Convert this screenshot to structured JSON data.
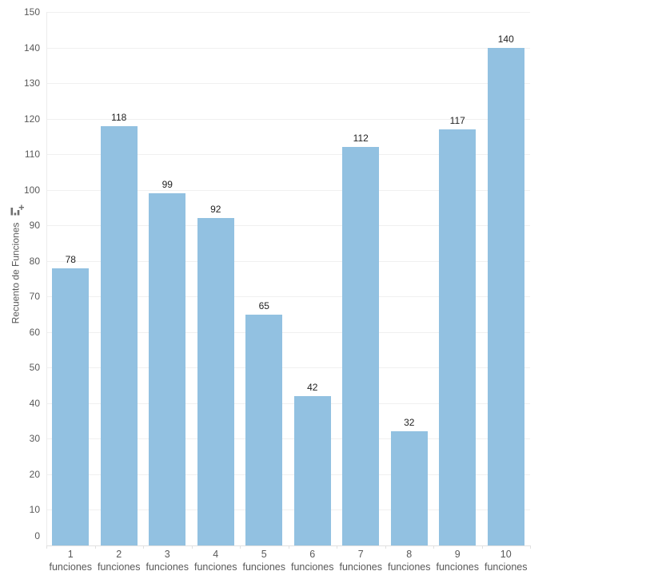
{
  "chart_data": {
    "type": "bar",
    "categories": [
      "1",
      "2",
      "3",
      "4",
      "5",
      "6",
      "7",
      "8",
      "9",
      "10"
    ],
    "category_suffix": "funciones",
    "values": [
      78,
      118,
      99,
      92,
      65,
      42,
      112,
      32,
      117,
      140
    ],
    "title": "",
    "xlabel": "",
    "ylabel": "Recuento de Funciones",
    "ylim": [
      0,
      150
    ],
    "yticks": [
      0,
      10,
      20,
      30,
      40,
      50,
      60,
      70,
      80,
      90,
      100,
      110,
      120,
      130,
      140,
      150
    ],
    "grid": true,
    "legend": false,
    "value_labels_shown": true,
    "colors": {
      "bar": "#92c1e1",
      "grid": "#f0f0f0",
      "axis_line": "#e0e0e0",
      "axis_text": "#595959",
      "value_label": "#1f1f1f",
      "ylabel_icon": "#6e6e6e",
      "background": "#ffffff"
    }
  }
}
